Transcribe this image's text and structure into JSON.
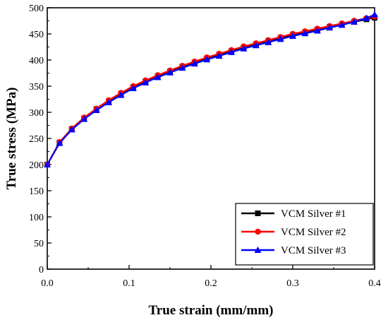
{
  "chart_data": {
    "type": "line",
    "xlabel": "True strain (mm/mm)",
    "ylabel": "True stress (MPa)",
    "xlim": [
      0.0,
      0.4
    ],
    "ylim": [
      0,
      500
    ],
    "x_ticks": [
      "0.0",
      "0.1",
      "0.2",
      "0.3",
      "0.4"
    ],
    "y_ticks": [
      "0",
      "50",
      "100",
      "150",
      "200",
      "250",
      "300",
      "350",
      "400",
      "450",
      "500"
    ],
    "legend_position": "bottom-right",
    "grid": false,
    "x": [
      0.0,
      0.015,
      0.03,
      0.045,
      0.06,
      0.075,
      0.09,
      0.105,
      0.12,
      0.135,
      0.15,
      0.165,
      0.18,
      0.195,
      0.21,
      0.225,
      0.24,
      0.255,
      0.27,
      0.285,
      0.3,
      0.315,
      0.33,
      0.345,
      0.36,
      0.375,
      0.39,
      0.4
    ],
    "series": [
      {
        "name": "VCM Silver #1",
        "color": "#000000",
        "marker": "square",
        "values": [
          200,
          242,
          268,
          288,
          306,
          321,
          335,
          348,
          359,
          369,
          378,
          387,
          395,
          403,
          410,
          417,
          424,
          430,
          436,
          442,
          448,
          453,
          458,
          463,
          468,
          473,
          478,
          481
        ]
      },
      {
        "name": "VCM Silver #2",
        "color": "#ff0000",
        "marker": "circle",
        "values": [
          200,
          243,
          269,
          290,
          307,
          323,
          337,
          350,
          361,
          371,
          380,
          389,
          397,
          405,
          412,
          419,
          426,
          432,
          438,
          444,
          450,
          455,
          460,
          465,
          470,
          475,
          480,
          483
        ]
      },
      {
        "name": "VCM Silver #3",
        "color": "#0000ff",
        "marker": "triangle",
        "values": [
          200,
          241,
          267,
          287,
          304,
          319,
          333,
          346,
          357,
          367,
          376,
          385,
          393,
          401,
          408,
          415,
          422,
          428,
          434,
          440,
          446,
          451,
          456,
          462,
          467,
          473,
          480,
          487
        ]
      }
    ]
  }
}
